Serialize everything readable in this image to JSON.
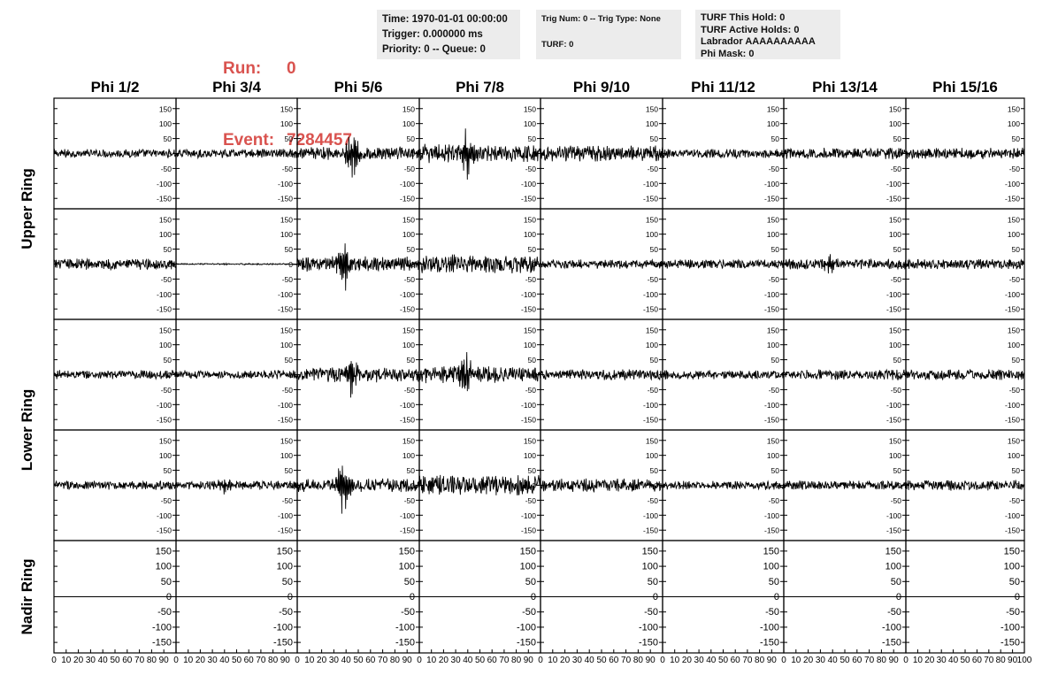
{
  "header": {
    "run_label": "Run:",
    "run_value": "0",
    "event_label": "Event:",
    "event_value": "7284457"
  },
  "info_time": {
    "time": "Time: 1970-01-01 00:00:00",
    "trigger": "Trigger: 0.000000 ms",
    "priority": "Priority: 0 -- Queue: 0"
  },
  "info_trig": {
    "trig": "Trig Num: 0 -- Trig Type: None",
    "turf": "TURF: 0"
  },
  "info_turf": {
    "hold": "TURF This Hold: 0",
    "active": "TURF Active Holds: 0",
    "labrador": "Labrador AAAAAAAAAA",
    "phimask": "Phi Mask: 0"
  },
  "chart_data": {
    "type": "line",
    "columns": [
      "Phi 1/2",
      "Phi 3/4",
      "Phi 5/6",
      "Phi 7/8",
      "Phi 9/10",
      "Phi 11/12",
      "Phi 13/14",
      "Phi 15/16"
    ],
    "ring_labels": [
      "Upper Ring",
      "Lower Ring",
      "Nadir Ring"
    ],
    "xlim": [
      0,
      100
    ],
    "x_ticks": [
      "0",
      "10",
      "20",
      "30",
      "40",
      "50",
      "60",
      "70",
      "80",
      "90",
      "100"
    ],
    "ylim": [
      -170,
      170
    ],
    "y_ticks": [
      "150",
      "100",
      "50",
      "0",
      "-50",
      "-100",
      "-150"
    ],
    "y_tick_values": [
      150,
      100,
      50,
      0,
      -50,
      -100,
      -150
    ],
    "rows": [
      {
        "amplitudes": [
          12,
          12,
          18,
          25,
          22,
          12,
          15,
          15
        ],
        "pulse": [
          0,
          0,
          85,
          95,
          0,
          0,
          0,
          0
        ],
        "pulse_center": [
          0,
          0,
          45,
          40,
          0,
          0,
          0,
          0
        ]
      },
      {
        "amplitudes": [
          15,
          2,
          20,
          25,
          12,
          12,
          14,
          14
        ],
        "pulse": [
          0,
          0,
          90,
          0,
          0,
          0,
          30,
          0
        ],
        "pulse_center": [
          0,
          0,
          38,
          0,
          0,
          0,
          38,
          0
        ]
      },
      {
        "amplitudes": [
          12,
          12,
          20,
          22,
          15,
          12,
          14,
          14
        ],
        "pulse": [
          0,
          0,
          70,
          100,
          0,
          0,
          0,
          0
        ],
        "pulse_center": [
          0,
          0,
          45,
          38,
          0,
          0,
          0,
          0
        ]
      },
      {
        "amplitudes": [
          12,
          12,
          18,
          28,
          18,
          12,
          12,
          14
        ],
        "pulse": [
          0,
          35,
          110,
          0,
          0,
          0,
          0,
          0
        ],
        "pulse_center": [
          0,
          40,
          38,
          0,
          0,
          0,
          0,
          0
        ]
      },
      {
        "amplitudes": [
          0,
          0,
          0,
          0,
          0,
          0,
          0,
          0
        ],
        "pulse": [
          0,
          0,
          0,
          0,
          0,
          0,
          0,
          0
        ],
        "pulse_center": [
          0,
          0,
          0,
          0,
          0,
          0,
          0,
          0
        ]
      }
    ]
  }
}
